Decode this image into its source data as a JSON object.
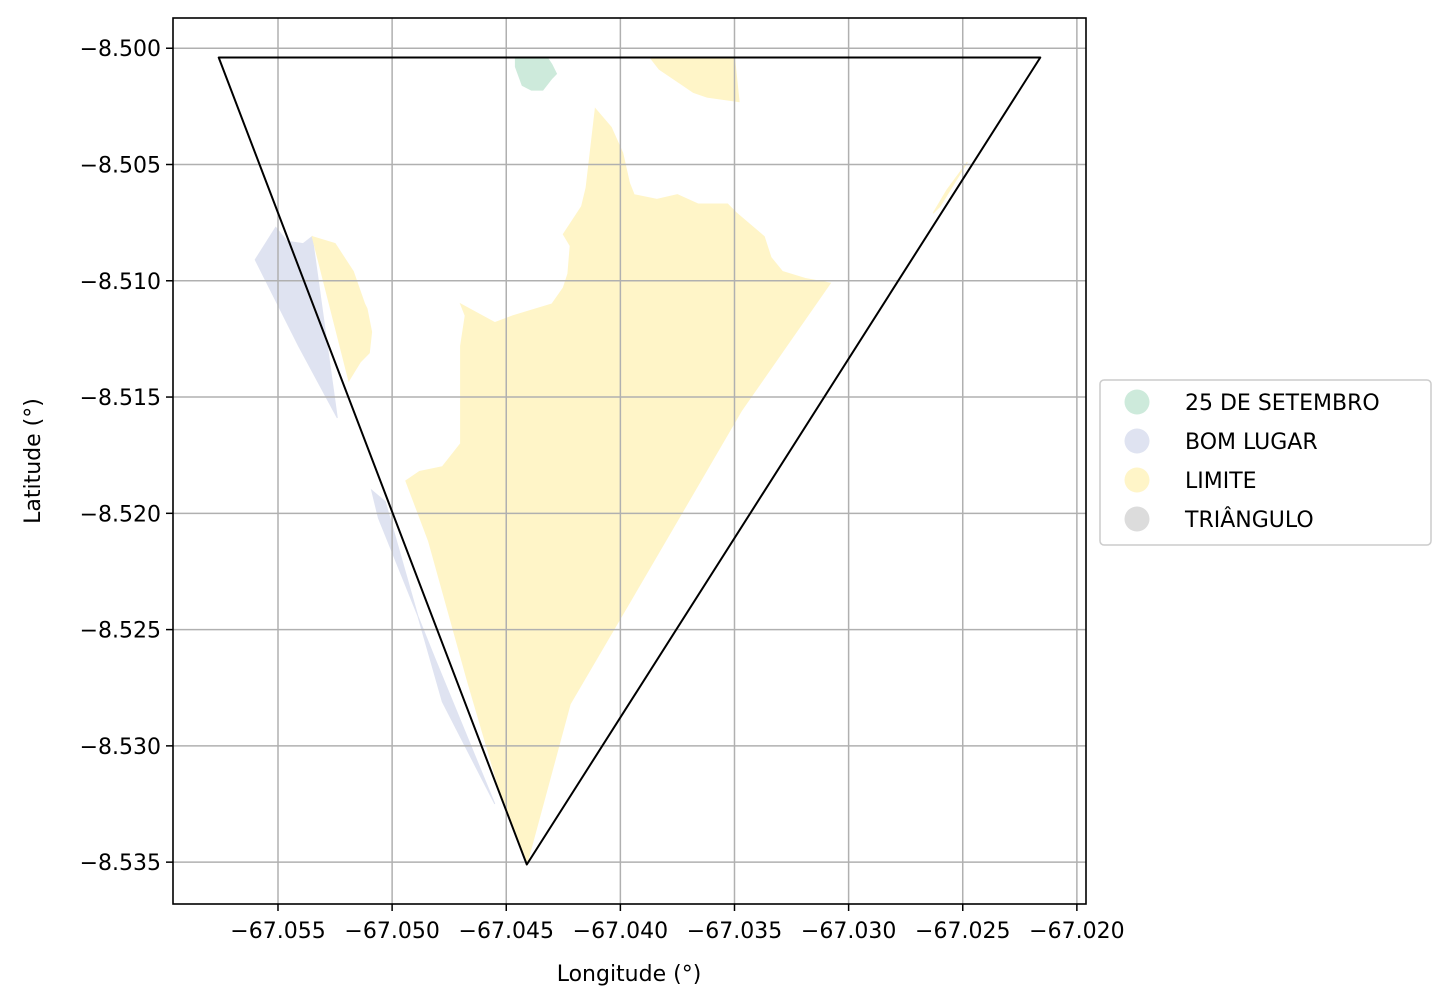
{
  "chart_data": {
    "type": "map",
    "xlabel": "Longitude (°)",
    "ylabel": "Latitude (°)",
    "xlim": [
      -67.0596,
      -67.0196
    ],
    "ylim": [
      -8.5368,
      -8.4987
    ],
    "x_ticks": [
      -67.055,
      -67.05,
      -67.045,
      -67.04,
      -67.035,
      -67.03,
      -67.025,
      -67.02
    ],
    "x_tick_labels": [
      "−67.055",
      "−67.050",
      "−67.045",
      "−67.040",
      "−67.035",
      "−67.030",
      "−67.025",
      "−67.020"
    ],
    "y_ticks": [
      -8.5,
      -8.505,
      -8.51,
      -8.515,
      -8.52,
      -8.525,
      -8.53,
      -8.535
    ],
    "y_tick_labels": [
      "−8.500",
      "−8.505",
      "−8.510",
      "−8.515",
      "−8.520",
      "−8.525",
      "−8.530",
      "−8.535"
    ],
    "grid": true,
    "legend_position": "right",
    "legend": [
      {
        "name": "25 DE SETEMBRO",
        "color": "#cdeadb"
      },
      {
        "name": "BOM LUGAR",
        "color": "#dfe3f1"
      },
      {
        "name": "LIMITE",
        "color": "#fff5c8"
      },
      {
        "name": "TRIÂNGULO",
        "color": "#dcdcdc"
      }
    ],
    "boundary": [
      [
        -67.0576,
        -8.5004
      ],
      [
        -67.0216,
        -8.5004
      ],
      [
        -67.0441,
        -8.5351
      ]
    ],
    "regions": [
      {
        "name": "25 DE SETEMBRO",
        "color": "#cdeadb",
        "polygons": [
          [
            [
              -67.0446,
              -8.5004
            ],
            [
              -67.0432,
              -8.5004
            ],
            [
              -67.043,
              -8.5007
            ],
            [
              -67.0428,
              -8.5011
            ],
            [
              -67.043,
              -8.5013
            ],
            [
              -67.0434,
              -8.5018
            ],
            [
              -67.0439,
              -8.5018
            ],
            [
              -67.0443,
              -8.5016
            ],
            [
              -67.0446,
              -8.5008
            ]
          ]
        ]
      },
      {
        "name": "BOM LUGAR",
        "color": "#dfe3f1",
        "polygons": [
          [
            [
              -67.0551,
              -8.5077
            ],
            [
              -67.0546,
              -8.5083
            ],
            [
              -67.0539,
              -8.5084
            ],
            [
              -67.0535,
              -8.5081
            ],
            [
              -67.0524,
              -8.5159
            ],
            [
              -67.0541,
              -8.5128
            ],
            [
              -67.056,
              -8.5091
            ]
          ],
          [
            [
              -67.0506,
              -8.5202
            ],
            [
              -67.0509,
              -8.519
            ],
            [
              -67.0503,
              -8.5195
            ],
            [
              -67.0478,
              -8.5281
            ],
            [
              -67.0455,
              -8.5325
            ],
            [
              -67.0481,
              -8.5263
            ]
          ]
        ]
      },
      {
        "name": "LIMITE",
        "color": "#fff5c8",
        "polygons": [
          [
            [
              -67.0535,
              -8.5081
            ],
            [
              -67.0525,
              -8.5084
            ],
            [
              -67.0517,
              -8.5096
            ],
            [
              -67.0512,
              -8.511
            ],
            [
              -67.0511,
              -8.5112
            ],
            [
              -67.0509,
              -8.5122
            ],
            [
              -67.051,
              -8.5131
            ],
            [
              -67.0514,
              -8.5135
            ],
            [
              -67.0519,
              -8.5143
            ]
          ],
          [
            [
              -67.0387,
              -8.5004
            ],
            [
              -67.0383,
              -8.5009
            ],
            [
              -67.0374,
              -8.5015
            ],
            [
              -67.0368,
              -8.5019
            ],
            [
              -67.0362,
              -8.5021
            ],
            [
              -67.0348,
              -8.5023
            ],
            [
              -67.035,
              -8.5004
            ]
          ],
          [
            [
              -67.0411,
              -8.5026
            ],
            [
              -67.0404,
              -8.5034
            ],
            [
              -67.0399,
              -8.5045
            ],
            [
              -67.0396,
              -8.5058
            ],
            [
              -67.0394,
              -8.5063
            ],
            [
              -67.0384,
              -8.5065
            ],
            [
              -67.0375,
              -8.5063
            ],
            [
              -67.0366,
              -8.5067
            ],
            [
              -67.0353,
              -8.5067
            ],
            [
              -67.0349,
              -8.5071
            ],
            [
              -67.0337,
              -8.5081
            ],
            [
              -67.0334,
              -8.509
            ],
            [
              -67.0329,
              -8.5096
            ],
            [
              -67.0319,
              -8.5099
            ],
            [
              -67.0308,
              -8.5101
            ],
            [
              -67.0347,
              -8.5156
            ],
            [
              -67.0385,
              -8.522
            ],
            [
              -67.0422,
              -8.5282
            ],
            [
              -67.0441,
              -8.5351
            ],
            [
              -67.0453,
              -8.5319
            ],
            [
              -67.0467,
              -8.5272
            ],
            [
              -67.0484,
              -8.5212
            ],
            [
              -67.0494,
              -8.5186
            ],
            [
              -67.0488,
              -8.5182
            ],
            [
              -67.0478,
              -8.518
            ],
            [
              -67.047,
              -8.517
            ],
            [
              -67.047,
              -8.5155
            ],
            [
              -67.047,
              -8.5143
            ],
            [
              -67.047,
              -8.5128
            ],
            [
              -67.0468,
              -8.5115
            ],
            [
              -67.047,
              -8.511
            ],
            [
              -67.0455,
              -8.5118
            ],
            [
              -67.0447,
              -8.5115
            ],
            [
              -67.043,
              -8.511
            ],
            [
              -67.0425,
              -8.5103
            ],
            [
              -67.0423,
              -8.5097
            ],
            [
              -67.0422,
              -8.5085
            ],
            [
              -67.0425,
              -8.508
            ],
            [
              -67.0417,
              -8.5068
            ],
            [
              -67.0415,
              -8.506
            ]
          ],
          [
            [
              -67.0248,
              -8.5049
            ],
            [
              -67.026,
              -8.5068
            ],
            [
              -67.0263,
              -8.5071
            ],
            [
              -67.0257,
              -8.5061
            ]
          ]
        ]
      }
    ]
  }
}
